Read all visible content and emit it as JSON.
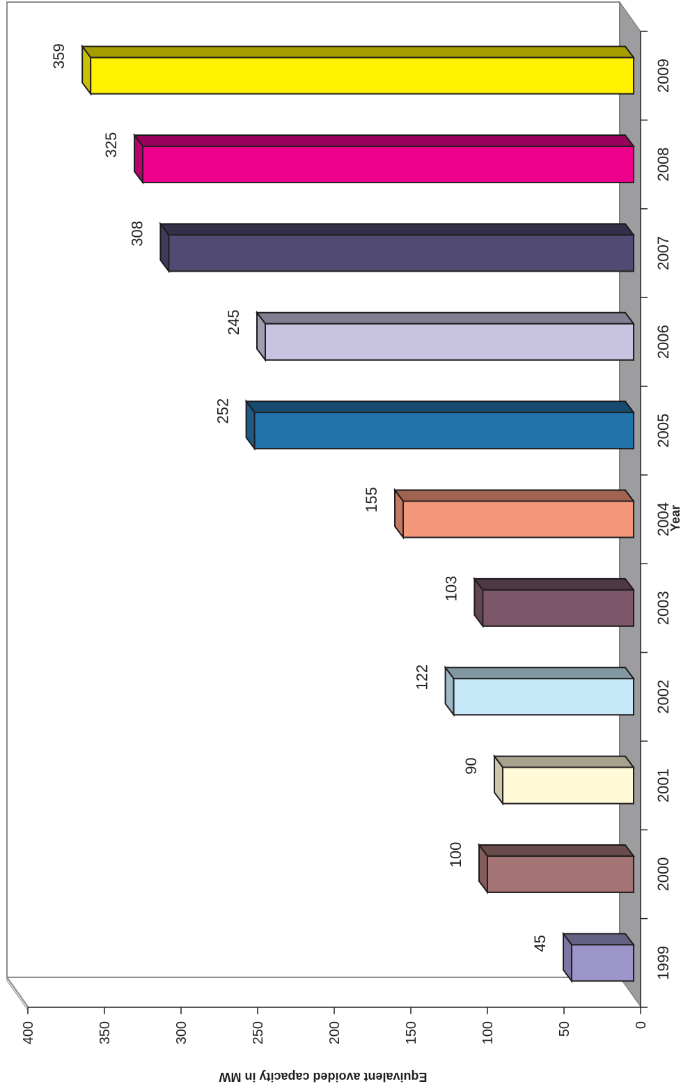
{
  "chart_data": {
    "type": "bar",
    "orientation": "horizontal",
    "rotation": "rotated 90 degrees clockwise",
    "categories": [
      "1999",
      "2000",
      "2001",
      "2002",
      "2003",
      "2004",
      "2005",
      "2006",
      "2007",
      "2008",
      "2009"
    ],
    "values": [
      45,
      100,
      90,
      122,
      103,
      155,
      252,
      245,
      308,
      325,
      359
    ],
    "data_labels": [
      "45",
      "100",
      "90",
      "122",
      "103",
      "155",
      "252",
      "245",
      "308",
      "325",
      "359"
    ],
    "colors": [
      "#9b95c9",
      "#a47474",
      "#fff9d8",
      "#c7e8f8",
      "#7c5769",
      "#f4987b",
      "#2272ab",
      "#c7c3e1",
      "#514a72",
      "#ec008c",
      "#fff100"
    ],
    "xlabel": "Year",
    "ylabel": "Equivalent avoided capacity in MW",
    "ylim": [
      0,
      400
    ],
    "ticks": [
      "0",
      "50",
      "100",
      "150",
      "200",
      "250",
      "300",
      "350",
      "400"
    ],
    "grid": false,
    "style": "3d"
  }
}
